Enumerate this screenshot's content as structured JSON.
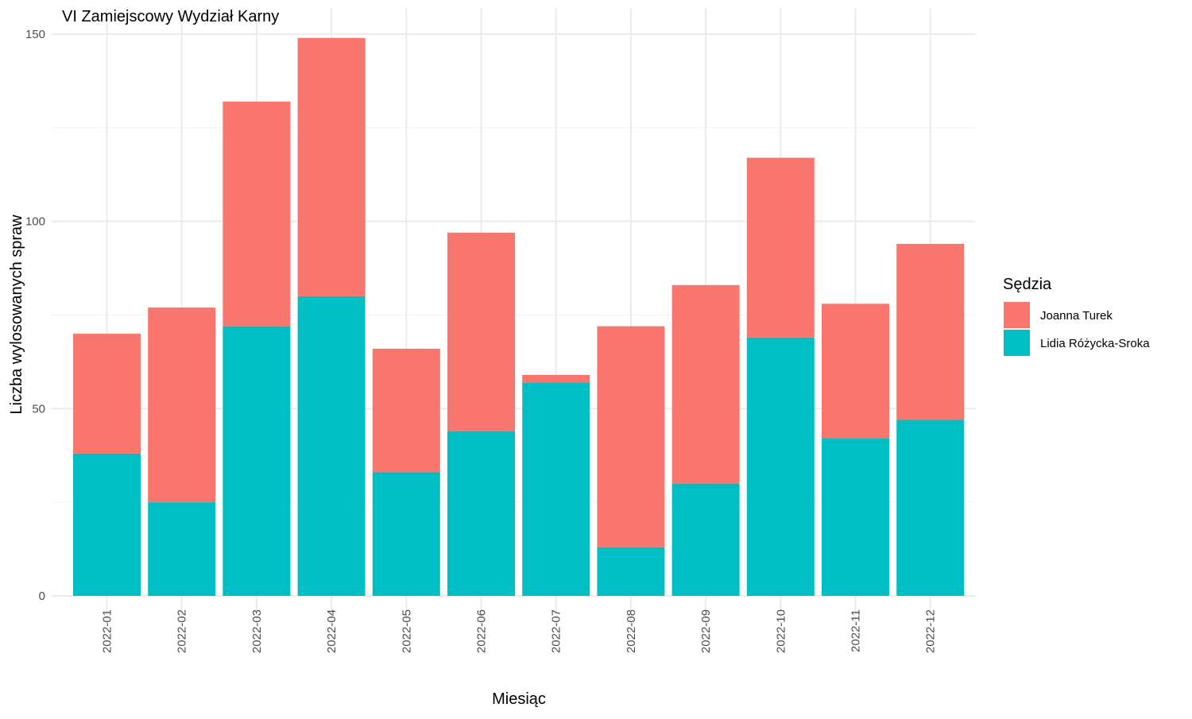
{
  "chart_data": {
    "type": "bar",
    "stacked": true,
    "title": "VI Zamiejscowy Wydział Karny",
    "xlabel": "Miesiąc",
    "ylabel": "Liczba wylosowanych spraw",
    "ylim": [
      0,
      150
    ],
    "yticks": [
      0,
      50,
      100,
      150
    ],
    "grid": true,
    "legend_position": "right",
    "legend_title": "Sędzia",
    "categories": [
      "2022-01",
      "2022-02",
      "2022-03",
      "2022-04",
      "2022-05",
      "2022-06",
      "2022-07",
      "2022-08",
      "2022-09",
      "2022-10",
      "2022-11",
      "2022-12"
    ],
    "series": [
      {
        "name": "Joanna Turek",
        "color": "#F8766D",
        "values": [
          32,
          52,
          60,
          69,
          33,
          53,
          2,
          59,
          53,
          48,
          36,
          47
        ]
      },
      {
        "name": "Lidia Różycka-Sroka",
        "color": "#00BFC4",
        "values": [
          38,
          25,
          72,
          80,
          33,
          44,
          57,
          13,
          30,
          69,
          42,
          47
        ]
      }
    ]
  }
}
